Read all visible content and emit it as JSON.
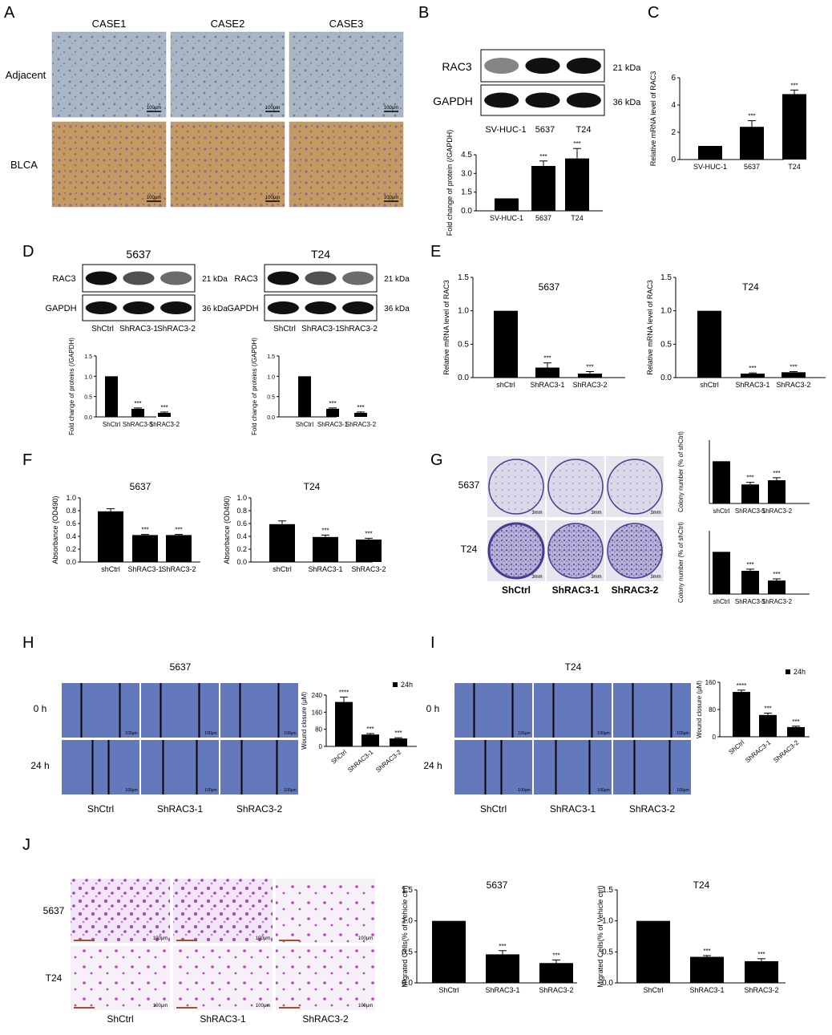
{
  "panel_letters": [
    "A",
    "B",
    "C",
    "D",
    "E",
    "F",
    "G",
    "H",
    "I",
    "J"
  ],
  "panelA": {
    "columns": [
      "CASE1",
      "CASE2",
      "CASE3"
    ],
    "rows": [
      "Adjacent",
      "BLCA"
    ],
    "scale": "100μm"
  },
  "panelB": {
    "blot_labels": [
      "RAC3",
      "GAPDH"
    ],
    "kda": [
      "21 kDa",
      "36 kDa"
    ],
    "lanes": [
      "SV-HUC-1",
      "5637",
      "T24"
    ]
  },
  "panelD": {
    "titles": [
      "5637",
      "T24"
    ],
    "blot_labels": [
      "RAC3",
      "GAPDH"
    ],
    "kda": [
      "21 kDa",
      "36 kDa"
    ],
    "lanes": [
      "ShCtrl",
      "ShRAC3-1",
      "ShRAC3-2"
    ]
  },
  "panelG": {
    "rows": [
      "5637",
      "T24"
    ],
    "columns": [
      "ShCtrl",
      "ShRAC3-1",
      "ShRAC3-2"
    ],
    "scale": "3mm"
  },
  "panelH": {
    "title": "5637",
    "times": [
      "0 h",
      "24 h"
    ],
    "columns": [
      "ShCtrl",
      "ShRAC3-1",
      "ShRAC3-2"
    ],
    "scale": "100μm"
  },
  "panelI": {
    "title": "T24",
    "times": [
      "0 h",
      "24 h"
    ],
    "columns": [
      "ShCtrl",
      "ShRAC3-1",
      "ShRAC3-2"
    ],
    "scale": "100μm"
  },
  "panelJ": {
    "rows": [
      "5637",
      "T24"
    ],
    "columns": [
      "ShCtrl",
      "ShRAC3-1",
      "ShRAC3-2"
    ],
    "scale": "100μm"
  },
  "colors": {
    "bar": "#000000",
    "ihc_brown": "#b8915a",
    "ihc_blue": "#8fa4b8",
    "crystal_violet": "#6a5aa8",
    "wound_blue": "#5f73b8",
    "transwell_magenta": "#c23ec8"
  },
  "chart_data": [
    {
      "id": "B",
      "type": "bar",
      "title": "",
      "xlabel": "",
      "ylabel": "Fold change of protein (/GAPDH)",
      "categories": [
        "SV-HUC-1",
        "5637",
        "T24"
      ],
      "values": [
        1.0,
        3.6,
        4.2
      ],
      "errors": [
        0,
        0.4,
        0.8
      ],
      "ylim": [
        0,
        4.5
      ],
      "yticks": [
        "0.0",
        "1.5",
        "3.0",
        "4.5"
      ],
      "annotations": [
        "",
        "***",
        "***"
      ]
    },
    {
      "id": "C",
      "type": "bar",
      "title": "",
      "xlabel": "",
      "ylabel": "Relative mRNA level of RAC3",
      "categories": [
        "SV-HUC-1",
        "5637",
        "T24"
      ],
      "values": [
        1.0,
        2.4,
        4.8
      ],
      "errors": [
        0,
        0.45,
        0.3
      ],
      "ylim": [
        0,
        6
      ],
      "yticks": [
        "0",
        "2",
        "4",
        "6"
      ],
      "annotations": [
        "",
        "***",
        "***"
      ]
    },
    {
      "id": "D1",
      "type": "bar",
      "title": "",
      "xlabel": "",
      "ylabel": "Fold change of proteins (/GAPDH)",
      "categories": [
        "ShCtrl",
        "ShRAC3-1",
        "ShRAC3-2"
      ],
      "values": [
        1.0,
        0.2,
        0.1
      ],
      "errors": [
        0,
        0.02,
        0.02
      ],
      "ylim": [
        0,
        1.5
      ],
      "yticks": [
        "0.0",
        "0.5",
        "1.0",
        "1.5"
      ],
      "annotations": [
        "",
        "***",
        "***"
      ]
    },
    {
      "id": "D2",
      "type": "bar",
      "title": "",
      "xlabel": "",
      "ylabel": "Fold change of proteins (/GAPDH)",
      "categories": [
        "ShCtrl",
        "ShRAC3-1",
        "ShRAC3-2"
      ],
      "values": [
        1.0,
        0.2,
        0.1
      ],
      "errors": [
        0,
        0.02,
        0.02
      ],
      "ylim": [
        0,
        1.5
      ],
      "yticks": [
        "0.0",
        "0.5",
        "1.0",
        "1.5"
      ],
      "annotations": [
        "",
        "***",
        "***"
      ]
    },
    {
      "id": "E1",
      "type": "bar",
      "title": "5637",
      "xlabel": "",
      "ylabel": "Relative mRNA level of RAC3",
      "categories": [
        "shCtrl",
        "ShRAC3-1",
        "ShRAC3-2"
      ],
      "values": [
        1.0,
        0.15,
        0.06
      ],
      "errors": [
        0,
        0.07,
        0.03
      ],
      "ylim": [
        0,
        1.5
      ],
      "yticks": [
        "0.0",
        "0.5",
        "1.0",
        "1.5"
      ],
      "annotations": [
        "",
        "***",
        "***"
      ]
    },
    {
      "id": "E2",
      "type": "bar",
      "title": "T24",
      "xlabel": "",
      "ylabel": "Relative mRNA level of RAC3",
      "categories": [
        "shCtrl",
        "ShRAC3-1",
        "ShRAC3-2"
      ],
      "values": [
        1.0,
        0.06,
        0.08
      ],
      "errors": [
        0,
        0.01,
        0.01
      ],
      "ylim": [
        0,
        1.5
      ],
      "yticks": [
        "0.0",
        "0.5",
        "1.0",
        "1.5"
      ],
      "annotations": [
        "",
        "***",
        "***"
      ]
    },
    {
      "id": "F1",
      "type": "bar",
      "title": "5637",
      "xlabel": "",
      "ylabel": "Absorbance (OD490)",
      "categories": [
        "shCtrl",
        "ShRAC3-1",
        "ShRAC3-2"
      ],
      "values": [
        0.79,
        0.42,
        0.42
      ],
      "errors": [
        0.04,
        0.01,
        0.01
      ],
      "ylim": [
        0,
        1.0
      ],
      "yticks": [
        "0.0",
        "0.2",
        "0.4",
        "0.6",
        "0.8",
        "1.0"
      ],
      "annotations": [
        "",
        "***",
        "***"
      ]
    },
    {
      "id": "F2",
      "type": "bar",
      "title": "T24",
      "xlabel": "",
      "ylabel": "Absorbance (OD490)",
      "categories": [
        "shCtrl",
        "ShRAC3-1",
        "ShRAC3-2"
      ],
      "values": [
        0.59,
        0.39,
        0.35
      ],
      "errors": [
        0.05,
        0.03,
        0.02
      ],
      "ylim": [
        0,
        1.0
      ],
      "yticks": [
        "0.0",
        "0.2",
        "0.4",
        "0.6",
        "0.8",
        "1.0"
      ],
      "annotations": [
        "",
        "***",
        "***"
      ]
    },
    {
      "id": "G1",
      "type": "bar",
      "title": "",
      "xlabel": "",
      "ylabel": "Colony number (% of shCtrl)",
      "categories": [
        "shCtrl",
        "ShRAC3-1",
        "ShRAC3-2"
      ],
      "values": [
        1.0,
        0.45,
        0.55
      ],
      "errors": [
        0,
        0.05,
        0.06
      ],
      "ylim": [
        0,
        1.5
      ],
      "yticks": [],
      "annotations": [
        "",
        "***",
        "***"
      ]
    },
    {
      "id": "G2",
      "type": "bar",
      "title": "",
      "xlabel": "",
      "ylabel": "Colony number (% of shCtrl)",
      "categories": [
        "shCtrl",
        "ShRAC3-1",
        "ShRAC3-2"
      ],
      "values": [
        1.0,
        0.55,
        0.32
      ],
      "errors": [
        0,
        0.04,
        0.04
      ],
      "ylim": [
        0,
        1.5
      ],
      "yticks": [],
      "annotations": [
        "",
        "***",
        "***"
      ]
    },
    {
      "id": "H",
      "type": "bar",
      "title": "",
      "xlabel": "",
      "ylabel": "Wound closure (μM)",
      "legend": "24h",
      "categories": [
        "ShCtrl",
        "ShRAC3-1",
        "ShRAC3-2"
      ],
      "values": [
        225,
        60,
        40
      ],
      "errors": [
        25,
        5,
        4
      ],
      "ylim": [
        0,
        260
      ],
      "yticks": [
        "0",
        "80",
        "160",
        "240"
      ],
      "annotations": [
        "****",
        "***",
        "***"
      ]
    },
    {
      "id": "I",
      "type": "bar",
      "title": "",
      "xlabel": "",
      "ylabel": "Wound closure (μM)",
      "legend": "24h",
      "categories": [
        "ShCtrl",
        "ShRAC3-1",
        "ShRAC3-2"
      ],
      "values": [
        148,
        72,
        32
      ],
      "errors": [
        6,
        6,
        3
      ],
      "ylim": [
        0,
        180
      ],
      "yticks": [
        "0",
        "80",
        "160"
      ],
      "annotations": [
        "****",
        "***",
        "***"
      ]
    },
    {
      "id": "J1",
      "type": "bar",
      "title": "5637",
      "xlabel": "",
      "ylabel": "Migrated Cells(% of Vehicle ctrl)",
      "categories": [
        "ShCtrl",
        "ShRAC3-1",
        "ShRAC3-2"
      ],
      "values": [
        1.0,
        0.46,
        0.32
      ],
      "errors": [
        0,
        0.06,
        0.05
      ],
      "ylim": [
        0,
        1.5
      ],
      "yticks": [
        "0.0",
        "0.5",
        "1.0",
        "1.5"
      ],
      "annotations": [
        "",
        "***",
        "***"
      ]
    },
    {
      "id": "J2",
      "type": "bar",
      "title": "T24",
      "xlabel": "",
      "ylabel": "Migrated Cells(% of Vehicle ctrl)",
      "categories": [
        "ShCtrl",
        "ShRAC3-1",
        "ShRAC3-2"
      ],
      "values": [
        1.0,
        0.42,
        0.35
      ],
      "errors": [
        0,
        0.02,
        0.04
      ],
      "ylim": [
        0,
        1.5
      ],
      "yticks": [
        "0.0",
        "0.5",
        "1.0",
        "1.5"
      ],
      "annotations": [
        "",
        "***",
        "***"
      ]
    }
  ]
}
